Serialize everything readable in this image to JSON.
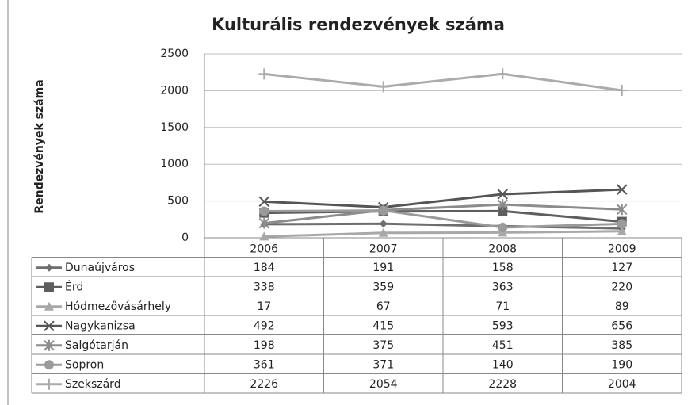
{
  "chart_data": {
    "type": "line",
    "title": "Kulturális rendezvények száma",
    "y_label": "Rendezvények száma",
    "categories": [
      "2006",
      "2007",
      "2008",
      "2009"
    ],
    "ylim": [
      0,
      2500
    ],
    "yticks": [
      0,
      500,
      1000,
      1500,
      2000,
      2500
    ],
    "grid": true,
    "series": [
      {
        "name": "Dunaújváros",
        "color": "#6e6e6e",
        "marker": "diamond",
        "values": [
          184,
          191,
          158,
          127
        ]
      },
      {
        "name": "Érd",
        "color": "#5e5e5e",
        "marker": "square",
        "values": [
          338,
          359,
          363,
          220
        ]
      },
      {
        "name": "Hódmezővásárhely",
        "color": "#a8a8a8",
        "marker": "triangle",
        "values": [
          17,
          67,
          71,
          89
        ]
      },
      {
        "name": "Nagykanizsa",
        "color": "#555555",
        "marker": "x",
        "values": [
          492,
          415,
          593,
          656
        ]
      },
      {
        "name": "Salgótarján",
        "color": "#8c8c8c",
        "marker": "star",
        "values": [
          198,
          375,
          451,
          385
        ]
      },
      {
        "name": "Sopron",
        "color": "#9a9a9a",
        "marker": "circle",
        "values": [
          361,
          371,
          140,
          190
        ]
      },
      {
        "name": "Szekszárd",
        "color": "#ababab",
        "marker": "plus",
        "values": [
          2226,
          2054,
          2228,
          2004
        ]
      }
    ]
  }
}
